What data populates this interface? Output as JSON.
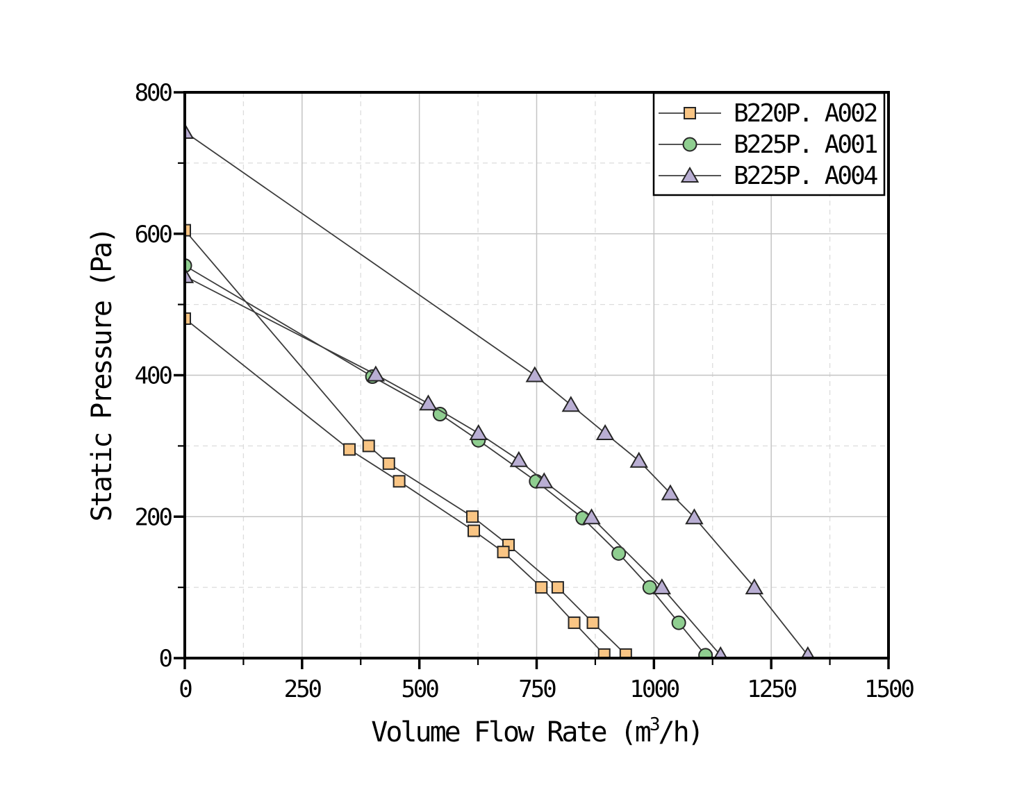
{
  "chart_data": {
    "type": "line",
    "title": "",
    "xlabel": "Volume Flow Rate (m³/h)",
    "xlabel_parts": {
      "prefix": "Volume Flow Rate (m",
      "sup": "3",
      "suffix": "/h)"
    },
    "ylabel": "Static Pressure (Pa)",
    "xlim": [
      0,
      1500
    ],
    "ylim": [
      0,
      800
    ],
    "x_major_ticks": [
      0,
      250,
      500,
      750,
      1000,
      1250,
      1500
    ],
    "x_minor_ticks": [
      125,
      375,
      625,
      875,
      1125,
      1375
    ],
    "y_major_ticks": [
      0,
      200,
      400,
      600,
      800
    ],
    "y_minor_ticks": [
      100,
      300,
      500,
      700
    ],
    "grid": {
      "major": "solid",
      "minor": "dashed"
    },
    "legend_position": "top-right",
    "series": [
      {
        "name": "B220P. A002",
        "marker": "square",
        "fill": "#F9C584",
        "curves": [
          [
            [
              0,
              605
            ],
            [
              392,
              300
            ],
            [
              435,
              275
            ],
            [
              613,
              200
            ],
            [
              690,
              160
            ],
            [
              795,
              100
            ],
            [
              870,
              50
            ],
            [
              940,
              5
            ]
          ],
          [
            [
              0,
              480
            ],
            [
              351,
              295
            ],
            [
              457,
              250
            ],
            [
              616,
              180
            ],
            [
              679,
              150
            ],
            [
              760,
              100
            ],
            [
              830,
              50
            ],
            [
              894,
              5
            ]
          ]
        ]
      },
      {
        "name": "B225P. A001",
        "marker": "circle",
        "fill": "#8FCE90",
        "curves": [
          [
            [
              0,
              555
            ],
            [
              400,
              398
            ],
            [
              544,
              345
            ],
            [
              626,
              308
            ],
            [
              749,
              250
            ],
            [
              848,
              198
            ],
            [
              925,
              148
            ],
            [
              991,
              100
            ],
            [
              1053,
              50
            ],
            [
              1110,
              4
            ]
          ]
        ]
      },
      {
        "name": "B225P. A004",
        "marker": "triangle",
        "fill": "#B9AED3",
        "curves": [
          [
            [
              0,
              540
            ],
            [
              407,
              401
            ],
            [
              519,
              360
            ],
            [
              626,
              318
            ],
            [
              712,
              280
            ],
            [
              766,
              250
            ],
            [
              867,
              199
            ],
            [
              1017,
              100
            ],
            [
              1142,
              4
            ]
          ],
          [
            [
              0,
              744
            ],
            [
              746,
              400
            ],
            [
              823,
              358
            ],
            [
              896,
              318
            ],
            [
              968,
              279
            ],
            [
              1035,
              233
            ],
            [
              1086,
              199
            ],
            [
              1214,
              100
            ],
            [
              1328,
              4
            ]
          ]
        ]
      }
    ]
  },
  "styles": {
    "background": "#FFFFFF",
    "line_color": "#3C3C3C",
    "marker_edge": "#262626",
    "grid_major_color": "#C4C4C4",
    "grid_minor_color": "#DCDCDC",
    "axis_color": "#000000",
    "legend_border": "#000000",
    "legend_bg": "#FFFFFF"
  }
}
